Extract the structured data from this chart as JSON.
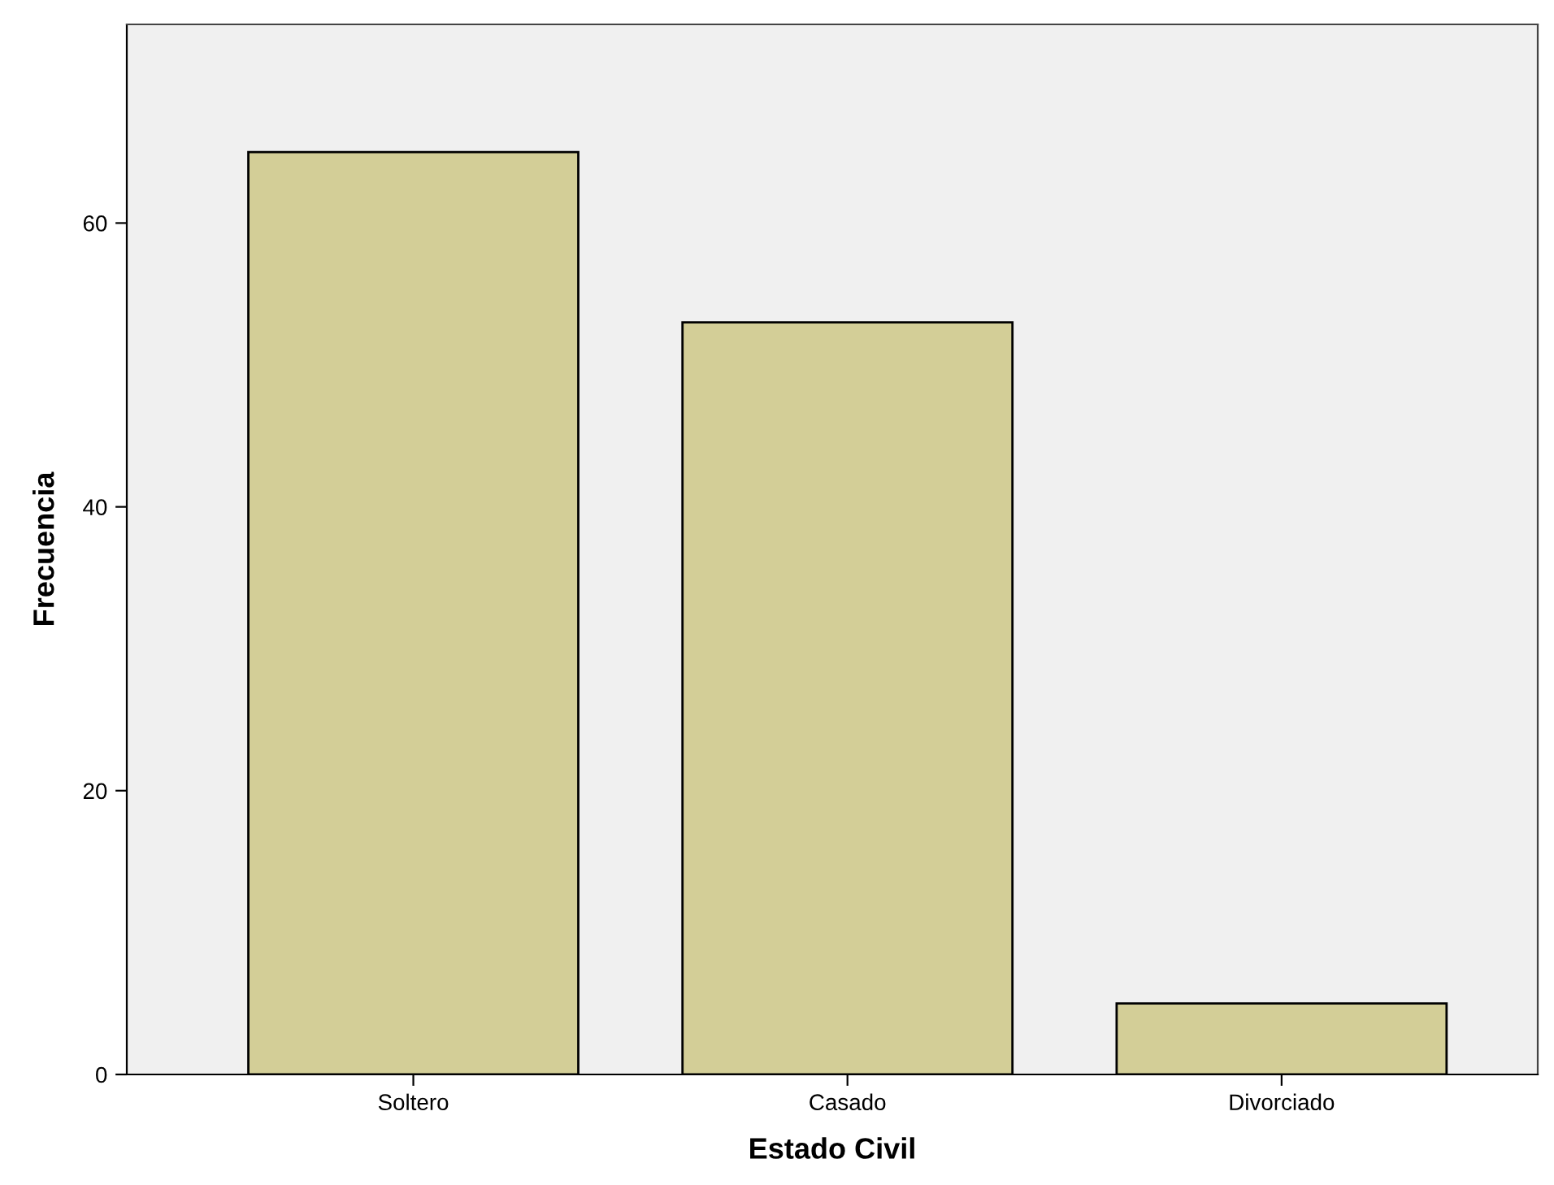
{
  "chart_data": {
    "type": "bar",
    "xlabel": "Estado Civil",
    "ylabel": "Frecuencia",
    "categories": [
      "Soltero",
      "Casado",
      "Divorciado"
    ],
    "values": [
      65,
      53,
      5
    ],
    "color": "#d3ce97",
    "ylim": [
      0,
      74
    ],
    "yticks": [
      0,
      20,
      40,
      60
    ],
    "grid": false,
    "legend": false
  }
}
